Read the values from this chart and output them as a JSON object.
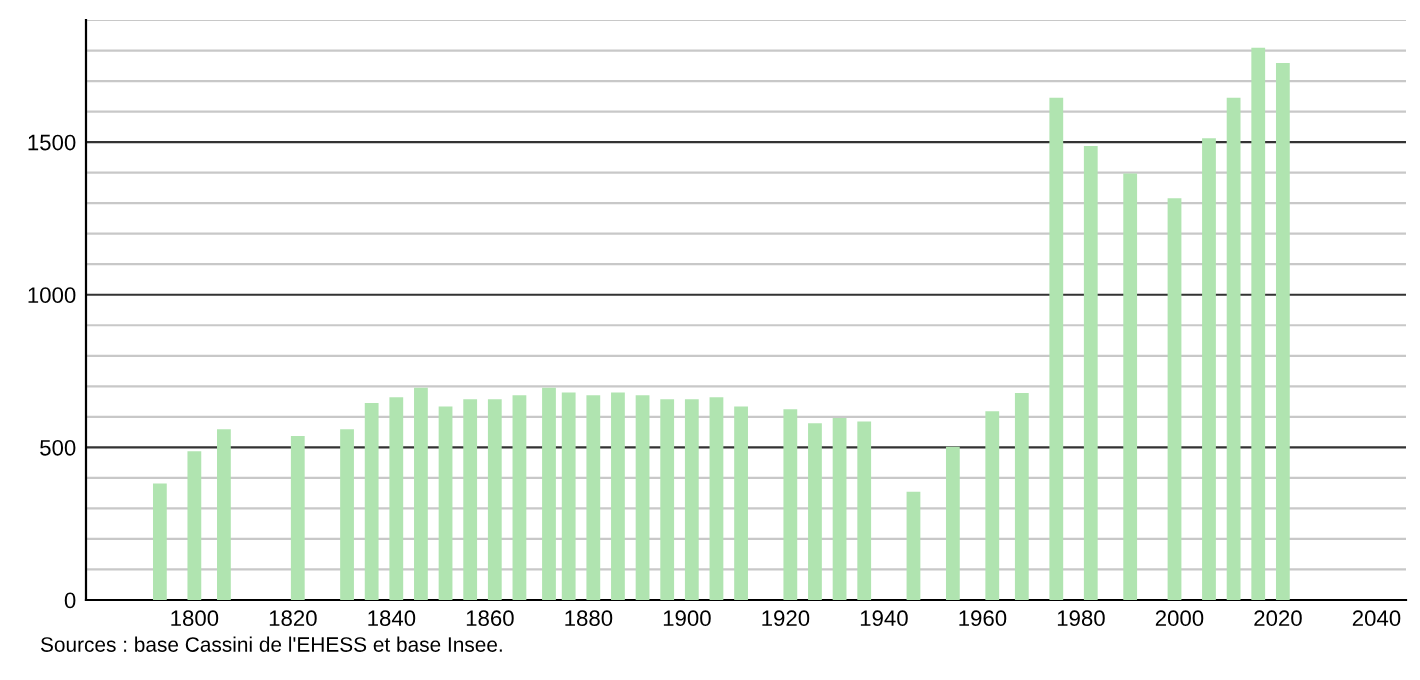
{
  "chart_data": {
    "type": "bar",
    "color": "#b0e4b0",
    "x": [
      1793,
      1800,
      1806,
      1821,
      1831,
      1836,
      1841,
      1846,
      1851,
      1856,
      1861,
      1866,
      1872,
      1876,
      1881,
      1886,
      1891,
      1896,
      1901,
      1906,
      1911,
      1921,
      1926,
      1931,
      1936,
      1946,
      1954,
      1962,
      1968,
      1975,
      1982,
      1990,
      1999,
      2006,
      2011,
      2016,
      2021
    ],
    "values": [
      382,
      487,
      559,
      537,
      559,
      645,
      664,
      695,
      634,
      658,
      658,
      671,
      695,
      680,
      671,
      680,
      671,
      658,
      658,
      664,
      634,
      625,
      579,
      596,
      585,
      355,
      502,
      618,
      678,
      1645,
      1487,
      1397,
      1316,
      1513,
      1645,
      1809,
      1759
    ],
    "xlim": [
      1778,
      2046
    ],
    "xticks": [
      1800,
      1820,
      1840,
      1860,
      1880,
      1900,
      1920,
      1940,
      1960,
      1980,
      2000,
      2020,
      2040
    ],
    "ylim": [
      0,
      1900
    ],
    "yticks": [
      0,
      {
        "value": 100,
        "label": null
      },
      {
        "value": 200,
        "label": null
      },
      {
        "value": 300,
        "label": null
      },
      {
        "value": 400,
        "label": null
      },
      500,
      {
        "value": 600,
        "label": null
      },
      {
        "value": 700,
        "label": null
      },
      {
        "value": 800,
        "label": null
      },
      {
        "value": 900,
        "label": null
      },
      1000,
      {
        "value": 1100,
        "label": null
      },
      {
        "value": 1200,
        "label": null
      },
      {
        "value": 1300,
        "label": null
      },
      {
        "value": 1400,
        "label": null
      },
      1500,
      {
        "value": 1600,
        "label": null
      },
      {
        "value": 1700,
        "label": null
      },
      {
        "value": 1800,
        "label": null
      },
      {
        "value": 1900,
        "label": null
      }
    ],
    "grid": "y",
    "annotations": [
      "Sources : base Cassini de l'EHESS et base Insee."
    ]
  }
}
